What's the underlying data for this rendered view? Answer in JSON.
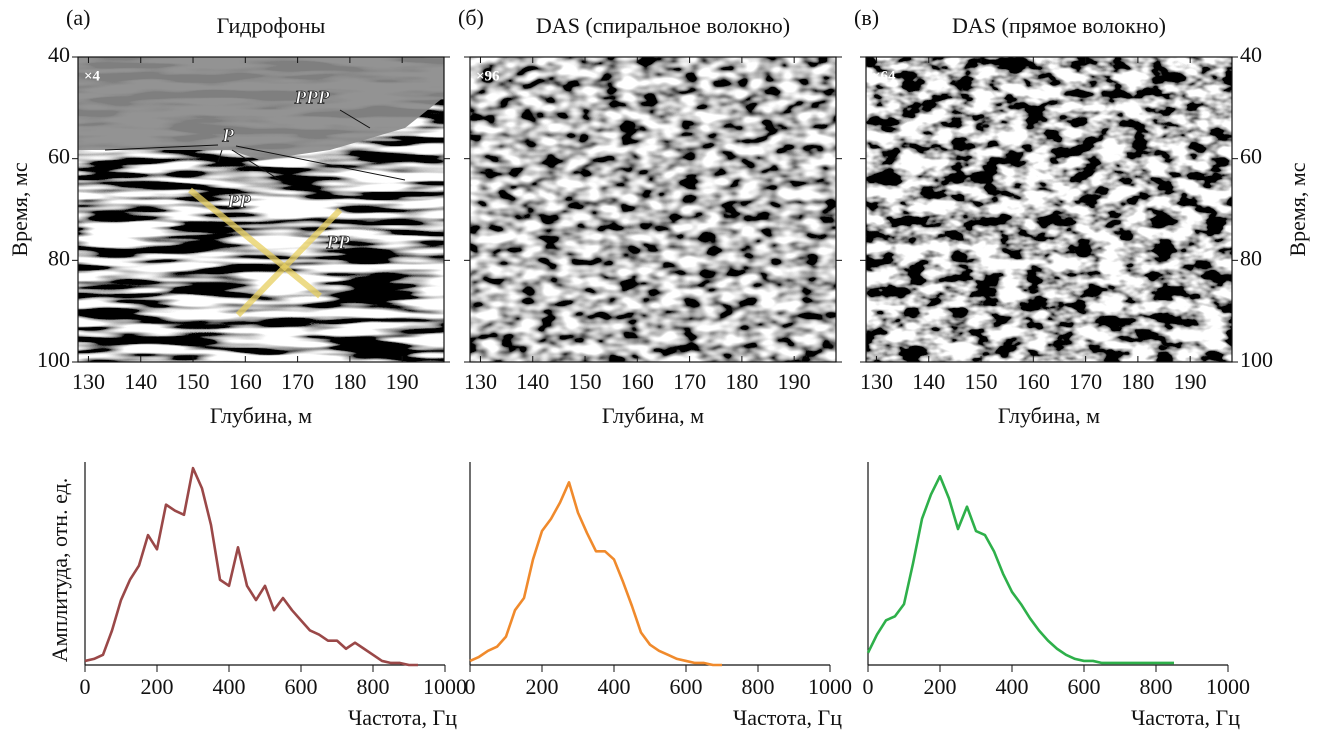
{
  "chart_data": [
    {
      "type": "image",
      "panel": "(а)",
      "title": "Гидрофоны",
      "multiplier": "×4",
      "xlabel": "Глубина, м",
      "ylabel": "Время, мс",
      "xlim": [
        128,
        198
      ],
      "xticks": [
        130,
        140,
        150,
        160,
        170,
        180,
        190
      ],
      "ylim": [
        100,
        40
      ],
      "yticks": [
        40,
        60,
        80,
        100
      ],
      "annotations": [
        "P",
        "PP",
        "PP",
        "PPP"
      ]
    },
    {
      "type": "image",
      "panel": "(б)",
      "title": "DAS  (спиральное волокно)",
      "multiplier": "×96",
      "xlabel": "Глубина, м",
      "xlim": [
        128,
        198
      ],
      "xticks": [
        130,
        140,
        150,
        160,
        170,
        180,
        190
      ],
      "ylim": [
        100,
        40
      ],
      "yticks": [
        40,
        60,
        80,
        100
      ]
    },
    {
      "type": "image",
      "panel": "(в)",
      "title": "DAS  (прямое волокно)",
      "multiplier": "×64",
      "xlabel": "Глубина, м",
      "ylabel": "Время, мс",
      "xlim": [
        128,
        198
      ],
      "xticks": [
        130,
        140,
        150,
        160,
        170,
        180,
        190
      ],
      "ylim": [
        100,
        40
      ],
      "yticks": [
        40,
        60,
        80,
        100
      ]
    },
    {
      "type": "line",
      "color": "#9a4848",
      "xlabel": "Частота, Гц",
      "ylabel": "Амплитуда, отн. ед.",
      "xlim": [
        0,
        1000
      ],
      "xticks": [
        0,
        200,
        400,
        600,
        800,
        1000
      ],
      "ylim": [
        0,
        1
      ],
      "x": [
        0,
        25,
        50,
        75,
        100,
        125,
        150,
        175,
        200,
        225,
        250,
        275,
        300,
        325,
        350,
        375,
        400,
        425,
        450,
        475,
        500,
        525,
        550,
        575,
        600,
        625,
        650,
        675,
        700,
        725,
        750,
        775,
        800,
        825,
        850,
        875,
        900,
        925,
        950,
        975,
        1000
      ],
      "values": [
        0.02,
        0.03,
        0.05,
        0.17,
        0.32,
        0.42,
        0.49,
        0.64,
        0.57,
        0.79,
        0.76,
        0.74,
        0.97,
        0.87,
        0.69,
        0.42,
        0.39,
        0.58,
        0.39,
        0.32,
        0.39,
        0.27,
        0.33,
        0.27,
        0.22,
        0.17,
        0.15,
        0.12,
        0.12,
        0.08,
        0.11,
        0.08,
        0.05,
        0.02,
        0.01,
        0.01,
        0,
        0,
        null,
        null,
        null
      ]
    },
    {
      "type": "line",
      "color": "#f08a2c",
      "xlabel": "Частота, Гц",
      "xlim": [
        0,
        1000
      ],
      "xticks": [
        0,
        200,
        400,
        600,
        800,
        1000
      ],
      "ylim": [
        0,
        1
      ],
      "x": [
        0,
        25,
        50,
        75,
        100,
        125,
        150,
        175,
        200,
        225,
        250,
        275,
        300,
        325,
        350,
        375,
        400,
        425,
        450,
        475,
        500,
        525,
        550,
        575,
        600,
        625,
        650,
        675,
        700,
        725,
        750,
        775,
        800,
        825,
        850,
        875,
        900,
        925,
        950,
        975,
        1000
      ],
      "values": [
        0.02,
        0.04,
        0.07,
        0.09,
        0.14,
        0.27,
        0.33,
        0.52,
        0.66,
        0.72,
        0.8,
        0.9,
        0.75,
        0.65,
        0.56,
        0.56,
        0.52,
        0.41,
        0.29,
        0.16,
        0.1,
        0.07,
        0.05,
        0.03,
        0.02,
        0.01,
        0.01,
        0,
        0,
        null,
        null,
        null,
        null,
        null,
        null,
        null,
        null,
        null,
        null,
        null,
        null
      ]
    },
    {
      "type": "line",
      "color": "#2eb04a",
      "xlabel": "Частота, Гц",
      "xlim": [
        0,
        1000
      ],
      "xticks": [
        0,
        200,
        400,
        600,
        800,
        1000
      ],
      "ylim": [
        0,
        1
      ],
      "x": [
        0,
        25,
        50,
        75,
        100,
        125,
        150,
        175,
        200,
        225,
        250,
        275,
        300,
        325,
        350,
        375,
        400,
        425,
        450,
        475,
        500,
        525,
        550,
        575,
        600,
        625,
        650,
        675,
        700,
        725,
        750,
        775,
        800,
        825,
        850,
        875,
        900,
        925,
        950,
        975,
        1000
      ],
      "values": [
        0.06,
        0.15,
        0.22,
        0.24,
        0.3,
        0.5,
        0.72,
        0.84,
        0.93,
        0.82,
        0.67,
        0.78,
        0.66,
        0.64,
        0.56,
        0.45,
        0.36,
        0.3,
        0.23,
        0.17,
        0.12,
        0.08,
        0.05,
        0.03,
        0.02,
        0.02,
        0.01,
        0.01,
        0.01,
        0.01,
        0.01,
        0.01,
        0.01,
        0.01,
        0.01,
        null,
        null,
        null,
        null,
        null,
        null
      ]
    }
  ]
}
